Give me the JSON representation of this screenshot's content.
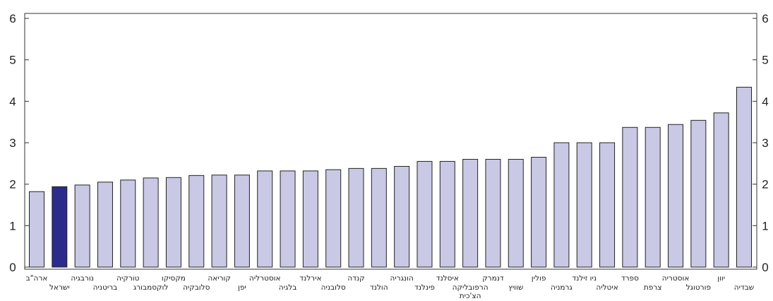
{
  "chart_data": {
    "type": "bar",
    "title": "",
    "xlabel": "",
    "ylabel": "",
    "ylim": [
      0,
      6
    ],
    "yticks": [
      0,
      1,
      2,
      3,
      4,
      5,
      6
    ],
    "grid": false,
    "bar_color": "#c9c9e6",
    "highlight_color": "#2b2b8c",
    "highlight_index": 1,
    "categories": [
      [
        "ארה\"ב"
      ],
      [
        "ישראל"
      ],
      [
        "נורבגיה"
      ],
      [
        "בריטניה"
      ],
      [
        "טורקיה"
      ],
      [
        "לוקסמבורג"
      ],
      [
        "מקסיקו"
      ],
      [
        "סלובקיה"
      ],
      [
        "קוריאה"
      ],
      [
        "יפן"
      ],
      [
        "אוסטרליה"
      ],
      [
        "בלגיה"
      ],
      [
        "אירלנד"
      ],
      [
        "סלובניה"
      ],
      [
        "קנדה"
      ],
      [
        "הולנד"
      ],
      [
        "הונגריה"
      ],
      [
        "פינלנד"
      ],
      [
        "איסלנד"
      ],
      [
        "הרפובליקה",
        "הצ'כית"
      ],
      [
        "דנמרק"
      ],
      [
        "שוויץ"
      ],
      [
        "פולין"
      ],
      [
        "גרמניה"
      ],
      [
        "ניו זילנד"
      ],
      [
        "איטליה"
      ],
      [
        "ספרד"
      ],
      [
        "צרפת"
      ],
      [
        "אוסטריה"
      ],
      [
        "פורטוגל"
      ],
      [
        "יוון"
      ],
      [
        "שבדיה"
      ]
    ],
    "values": [
      1.82,
      1.94,
      1.98,
      2.05,
      2.1,
      2.15,
      2.16,
      2.21,
      2.22,
      2.22,
      2.32,
      2.32,
      2.32,
      2.35,
      2.38,
      2.38,
      2.43,
      2.55,
      2.55,
      2.6,
      2.6,
      2.6,
      2.65,
      3.0,
      3.0,
      3.0,
      3.37,
      3.37,
      3.44,
      3.54,
      3.72,
      4.34
    ]
  }
}
